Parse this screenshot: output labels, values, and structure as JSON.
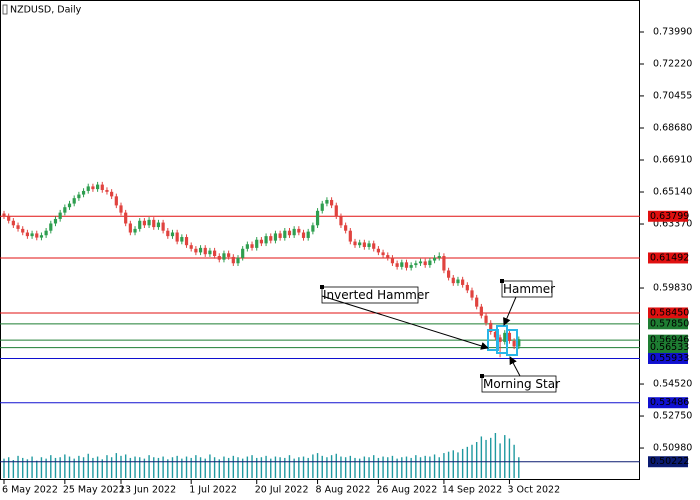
{
  "chart_data": {
    "type": "candlestick",
    "title": "NZDUSD, Daily",
    "ylim": [
      0.49212,
      0.7576
    ],
    "yticks": [
      {
        "value": 0.7399,
        "label": "0.73990"
      },
      {
        "value": 0.7222,
        "label": "0.72220"
      },
      {
        "value": 0.70455,
        "label": "0.70455"
      },
      {
        "value": 0.6868,
        "label": "0.68680"
      },
      {
        "value": 0.6691,
        "label": "0.66910"
      },
      {
        "value": 0.6514,
        "label": "0.65140"
      },
      {
        "value": 0.6337,
        "label": "0.63370"
      },
      {
        "value": 0.5983,
        "label": "0.59830"
      },
      {
        "value": 0.5452,
        "label": "0.54520"
      },
      {
        "value": 0.5275,
        "label": "0.52750"
      },
      {
        "value": 0.5098,
        "label": "0.50980"
      }
    ],
    "xticks": [
      {
        "value": 0,
        "label": "6 May 2022"
      },
      {
        "value": 13,
        "label": "25 May 2022"
      },
      {
        "value": 25,
        "label": "13 Jun 2022"
      },
      {
        "value": 40,
        "label": "1 Jul 2022"
      },
      {
        "value": 54,
        "label": "20 Jul 2022"
      },
      {
        "value": 67,
        "label": "8 Aug 2022"
      },
      {
        "value": 80,
        "label": "26 Aug 2022"
      },
      {
        "value": 94,
        "label": "14 Sep 2022"
      },
      {
        "value": 108,
        "label": "3 Oct 2022"
      }
    ],
    "up_color": "#2e9e4f",
    "down_color": "#e0433f",
    "volume_color": "#1f9aa0",
    "open": [
      0.6395,
      0.638,
      0.6355,
      0.633,
      0.631,
      0.629,
      0.627,
      0.6285,
      0.6262,
      0.6275,
      0.63,
      0.634,
      0.6365,
      0.64,
      0.643,
      0.645,
      0.648,
      0.65,
      0.652,
      0.6545,
      0.653,
      0.6555,
      0.6525,
      0.6515,
      0.649,
      0.644,
      0.64,
      0.634,
      0.629,
      0.631,
      0.6355,
      0.633,
      0.636,
      0.632,
      0.6345,
      0.63,
      0.627,
      0.629,
      0.624,
      0.6265,
      0.622,
      0.62,
      0.618,
      0.6205,
      0.617,
      0.619,
      0.616,
      0.614,
      0.6175,
      0.6155,
      0.612,
      0.615,
      0.62,
      0.6225,
      0.6205,
      0.625,
      0.623,
      0.627,
      0.6245,
      0.6285,
      0.626,
      0.63,
      0.6275,
      0.631,
      0.629,
      0.626,
      0.6295,
      0.633,
      0.641,
      0.645,
      0.647,
      0.644,
      0.638,
      0.633,
      0.63,
      0.624,
      0.622,
      0.6235,
      0.621,
      0.623,
      0.62,
      0.618,
      0.6165,
      0.615,
      0.612,
      0.61,
      0.6125,
      0.6095,
      0.611,
      0.612,
      0.613,
      0.611,
      0.6135,
      0.615,
      0.616,
      0.608,
      0.604,
      0.601,
      0.603,
      0.6,
      0.597,
      0.593,
      0.588,
      0.583,
      0.579,
      0.574,
      0.571,
      0.5685,
      0.5735,
      0.569,
      0.566
    ],
    "high": [
      0.641,
      0.6395,
      0.637,
      0.6345,
      0.6325,
      0.6305,
      0.63,
      0.63,
      0.629,
      0.6315,
      0.6355,
      0.638,
      0.6415,
      0.6445,
      0.6465,
      0.6495,
      0.6515,
      0.6535,
      0.656,
      0.656,
      0.657,
      0.657,
      0.654,
      0.653,
      0.6505,
      0.6455,
      0.6415,
      0.6355,
      0.6325,
      0.637,
      0.637,
      0.6375,
      0.6375,
      0.636,
      0.636,
      0.6315,
      0.6305,
      0.6305,
      0.628,
      0.628,
      0.6235,
      0.6215,
      0.622,
      0.622,
      0.6205,
      0.6205,
      0.6175,
      0.619,
      0.619,
      0.617,
      0.6165,
      0.6215,
      0.624,
      0.624,
      0.6265,
      0.6265,
      0.6285,
      0.6285,
      0.63,
      0.63,
      0.6315,
      0.6315,
      0.6325,
      0.6325,
      0.6305,
      0.631,
      0.6345,
      0.6425,
      0.6465,
      0.6485,
      0.6485,
      0.6455,
      0.6395,
      0.6345,
      0.6315,
      0.6255,
      0.625,
      0.625,
      0.6245,
      0.6245,
      0.6215,
      0.6195,
      0.618,
      0.6165,
      0.6135,
      0.614,
      0.614,
      0.6125,
      0.6135,
      0.6145,
      0.6145,
      0.615,
      0.6165,
      0.618,
      0.6175,
      0.6095,
      0.6055,
      0.6045,
      0.6045,
      0.6015,
      0.5985,
      0.5945,
      0.5895,
      0.5845,
      0.5805,
      0.5755,
      0.5725,
      0.575,
      0.575,
      0.5705,
      0.5715
    ],
    "low": [
      0.6365,
      0.634,
      0.6315,
      0.6295,
      0.6275,
      0.6255,
      0.6255,
      0.6247,
      0.6247,
      0.626,
      0.6285,
      0.6325,
      0.635,
      0.6385,
      0.6415,
      0.6435,
      0.6465,
      0.6485,
      0.6505,
      0.6515,
      0.6515,
      0.651,
      0.65,
      0.6475,
      0.6425,
      0.6385,
      0.6325,
      0.6275,
      0.6275,
      0.6295,
      0.6315,
      0.6315,
      0.6305,
      0.6305,
      0.6285,
      0.6255,
      0.6255,
      0.6225,
      0.6225,
      0.6205,
      0.6185,
      0.6165,
      0.6165,
      0.6155,
      0.6155,
      0.6145,
      0.6125,
      0.6125,
      0.614,
      0.6105,
      0.6105,
      0.6135,
      0.6185,
      0.619,
      0.619,
      0.6215,
      0.6215,
      0.623,
      0.623,
      0.6245,
      0.6245,
      0.626,
      0.626,
      0.6275,
      0.6245,
      0.6245,
      0.628,
      0.6315,
      0.6395,
      0.6435,
      0.6425,
      0.6365,
      0.6315,
      0.6285,
      0.6225,
      0.6205,
      0.6205,
      0.6195,
      0.6195,
      0.6185,
      0.6165,
      0.615,
      0.6135,
      0.6105,
      0.6085,
      0.6085,
      0.608,
      0.608,
      0.6095,
      0.6105,
      0.6095,
      0.6095,
      0.612,
      0.6135,
      0.6065,
      0.6025,
      0.5995,
      0.5995,
      0.5985,
      0.5955,
      0.5915,
      0.5865,
      0.5815,
      0.5775,
      0.5725,
      0.5695,
      0.56,
      0.567,
      0.5675,
      0.5645,
      0.5645
    ],
    "close": [
      0.638,
      0.6355,
      0.633,
      0.631,
      0.629,
      0.627,
      0.6285,
      0.6262,
      0.6275,
      0.63,
      0.634,
      0.6365,
      0.64,
      0.643,
      0.645,
      0.648,
      0.65,
      0.652,
      0.6545,
      0.653,
      0.6555,
      0.6525,
      0.6515,
      0.649,
      0.644,
      0.64,
      0.634,
      0.629,
      0.631,
      0.6355,
      0.633,
      0.636,
      0.632,
      0.6345,
      0.63,
      0.627,
      0.629,
      0.624,
      0.6265,
      0.622,
      0.62,
      0.618,
      0.6205,
      0.617,
      0.619,
      0.616,
      0.614,
      0.6175,
      0.6155,
      0.612,
      0.615,
      0.62,
      0.6225,
      0.6205,
      0.625,
      0.623,
      0.627,
      0.6245,
      0.6285,
      0.626,
      0.63,
      0.6275,
      0.631,
      0.629,
      0.626,
      0.6295,
      0.633,
      0.641,
      0.645,
      0.647,
      0.644,
      0.638,
      0.633,
      0.63,
      0.624,
      0.622,
      0.6235,
      0.621,
      0.623,
      0.62,
      0.618,
      0.6165,
      0.615,
      0.612,
      0.61,
      0.6125,
      0.6095,
      0.611,
      0.612,
      0.613,
      0.611,
      0.6135,
      0.615,
      0.616,
      0.608,
      0.604,
      0.601,
      0.603,
      0.6,
      0.597,
      0.593,
      0.588,
      0.583,
      0.579,
      0.574,
      0.571,
      0.5685,
      0.5735,
      0.569,
      0.566,
      0.57
    ],
    "volume": [
      28,
      30,
      26,
      32,
      29,
      27,
      31,
      25,
      30,
      28,
      33,
      29,
      30,
      34,
      31,
      28,
      32,
      30,
      35,
      29,
      31,
      27,
      33,
      30,
      36,
      32,
      34,
      29,
      31,
      30,
      28,
      33,
      30,
      29,
      31,
      27,
      30,
      32,
      28,
      31,
      29,
      33,
      30,
      28,
      34,
      30,
      27,
      31,
      29,
      32,
      30,
      28,
      31,
      33,
      29,
      30,
      32,
      28,
      31,
      30,
      29,
      33,
      28,
      30,
      31,
      29,
      34,
      36,
      32,
      30,
      33,
      35,
      31,
      30,
      32,
      29,
      28,
      31,
      30,
      33,
      29,
      31,
      30,
      32,
      28,
      30,
      31,
      29,
      33,
      30,
      32,
      31,
      34,
      30,
      36,
      38,
      40,
      37,
      42,
      45,
      48,
      52,
      60,
      55,
      58,
      65,
      50,
      62,
      57,
      48,
      30
    ],
    "levels": [
      {
        "value": 0.63799,
        "color": "#e01010"
      },
      {
        "value": 0.61492,
        "color": "#e01010"
      },
      {
        "value": 0.5845,
        "label": "0.58450",
        "color": "#e01010"
      },
      {
        "value": 0.5785,
        "label": "0.57850",
        "color": "#1e7d32"
      },
      {
        "value": 0.56946,
        "color": "#1e7d32"
      },
      {
        "value": 0.56533,
        "color": "#1e7d32"
      },
      {
        "value": 0.55933,
        "color": "#1010d0"
      },
      {
        "value": 0.53486,
        "color": "#1010d0"
      },
      {
        "value": 0.50222,
        "color": "#0a1a70"
      }
    ],
    "annotations": [
      {
        "text": "Inverted Hammer",
        "index": 103
      },
      {
        "text": "Hammer",
        "index": 106
      },
      {
        "text": "Morning Star",
        "index": 107
      }
    ]
  }
}
